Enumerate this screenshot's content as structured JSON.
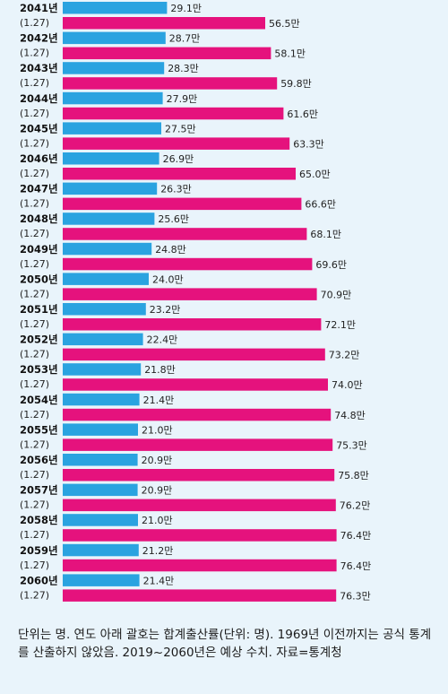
{
  "chart_data": {
    "type": "bar",
    "orientation": "horizontal",
    "categories": [
      "2041년",
      "2042년",
      "2043년",
      "2044년",
      "2045년",
      "2046년",
      "2047년",
      "2048년",
      "2049년",
      "2050년",
      "2051년",
      "2052년",
      "2053년",
      "2054년",
      "2055년",
      "2056년",
      "2057년",
      "2058년",
      "2059년",
      "2060년"
    ],
    "category_sub_labels": [
      "(1.27)",
      "(1.27)",
      "(1.27)",
      "(1.27)",
      "(1.27)",
      "(1.27)",
      "(1.27)",
      "(1.27)",
      "(1.27)",
      "(1.27)",
      "(1.27)",
      "(1.27)",
      "(1.27)",
      "(1.27)",
      "(1.27)",
      "(1.27)",
      "(1.27)",
      "(1.27)",
      "(1.27)",
      "(1.27)"
    ],
    "series": [
      {
        "color": "#2aa3e0",
        "values": [
          29.1,
          28.7,
          28.3,
          27.9,
          27.5,
          26.9,
          26.3,
          25.6,
          24.8,
          24.0,
          23.2,
          22.4,
          21.8,
          21.4,
          21.0,
          20.9,
          20.9,
          21.0,
          21.2,
          21.4
        ],
        "labels": [
          "29.1만",
          "28.7만",
          "28.3만",
          "27.9만",
          "27.5만",
          "26.9만",
          "26.3만",
          "25.6만",
          "24.8만",
          "24.0만",
          "23.2만",
          "22.4만",
          "21.8만",
          "21.4만",
          "21.0만",
          "20.9만",
          "20.9만",
          "21.0만",
          "21.2만",
          "21.4만"
        ]
      },
      {
        "color": "#e5127d",
        "values": [
          56.5,
          58.1,
          59.8,
          61.6,
          63.3,
          65.0,
          66.6,
          68.1,
          69.6,
          70.9,
          72.1,
          73.2,
          74.0,
          74.8,
          75.3,
          75.8,
          76.2,
          76.4,
          76.4,
          76.3
        ],
        "labels": [
          "56.5만",
          "58.1만",
          "59.8만",
          "61.6만",
          "63.3만",
          "65.0만",
          "66.6만",
          "68.1만",
          "69.6만",
          "70.9만",
          "72.1만",
          "73.2만",
          "74.0만",
          "74.8만",
          "75.3만",
          "75.8만",
          "76.2만",
          "76.4만",
          "76.4만",
          "76.3만"
        ]
      }
    ],
    "unit": "만"
  },
  "footnote": "단위는 명. 연도 아래 괄호는 합계출산률(단위: 명). 1969년 이전까지는 공식 통계를 산출하지 않았음. 2019~2060년은 예상 수치. 자료=통계청"
}
